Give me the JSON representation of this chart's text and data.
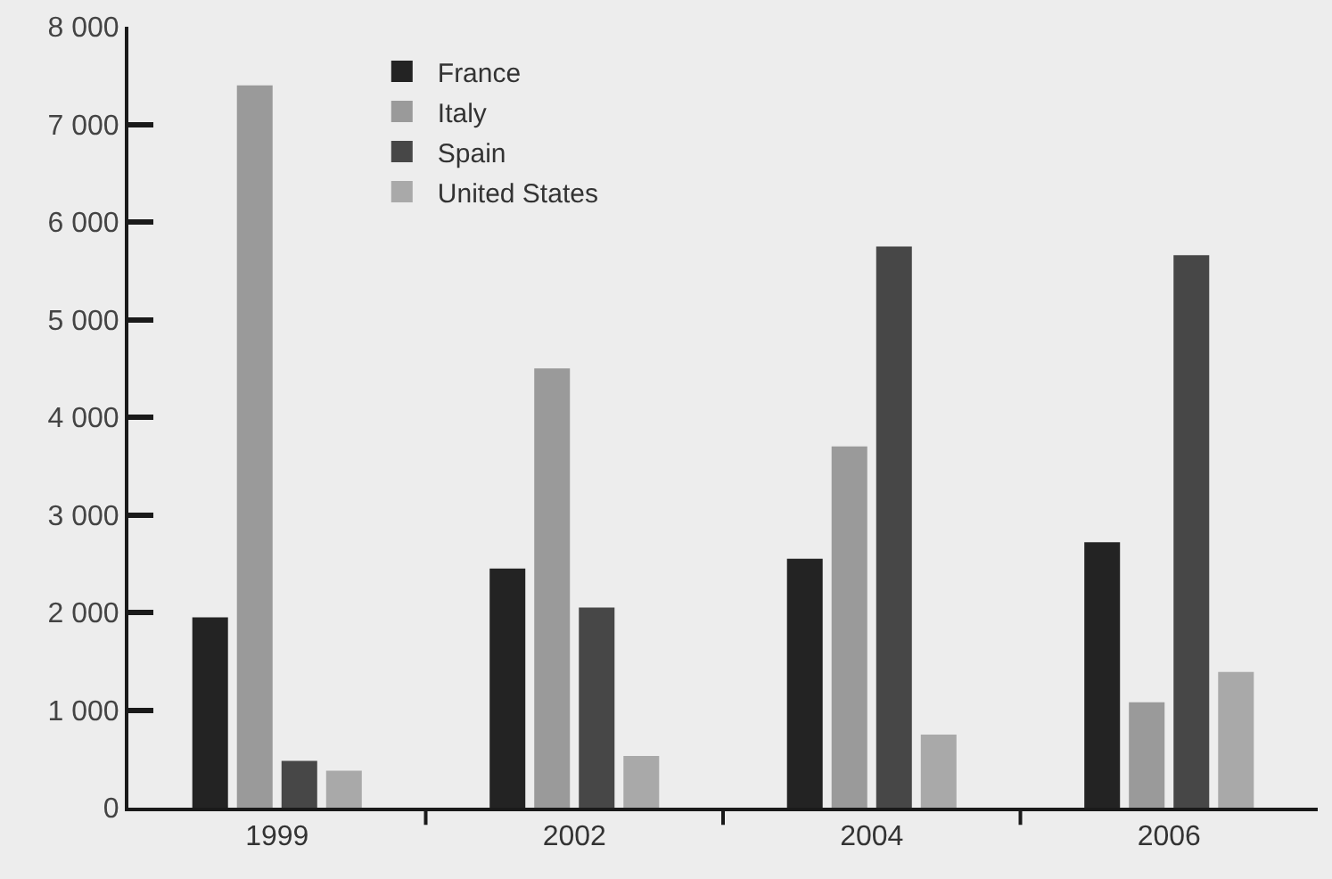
{
  "chart_data": {
    "type": "bar",
    "categories": [
      "1999",
      "2002",
      "2004",
      "2006"
    ],
    "series": [
      {
        "name": "France",
        "color": "#232323",
        "values": [
          1950,
          2450,
          2550,
          2720
        ]
      },
      {
        "name": "Italy",
        "color": "#9a9a9a",
        "values": [
          7400,
          4500,
          3700,
          1080
        ]
      },
      {
        "name": "Spain",
        "color": "#474747",
        "values": [
          480,
          2050,
          5750,
          5660
        ]
      },
      {
        "name": "United States",
        "color": "#a9a9a9",
        "values": [
          380,
          530,
          750,
          1390
        ]
      }
    ],
    "ylim": [
      0,
      8000
    ],
    "yticks": [
      0,
      {
        "value": 1000,
        "label": "1 000"
      },
      {
        "value": 2000,
        "label": "2 000"
      },
      {
        "value": 3000,
        "label": "3 000"
      },
      {
        "value": 4000,
        "label": "4 000"
      },
      {
        "value": 5000,
        "label": "5 000"
      },
      {
        "value": 6000,
        "label": "6 000"
      },
      {
        "value": 7000,
        "label": "7 000"
      },
      {
        "value": 8000,
        "label": "8 000"
      }
    ],
    "grid": false,
    "legend": "top left"
  }
}
